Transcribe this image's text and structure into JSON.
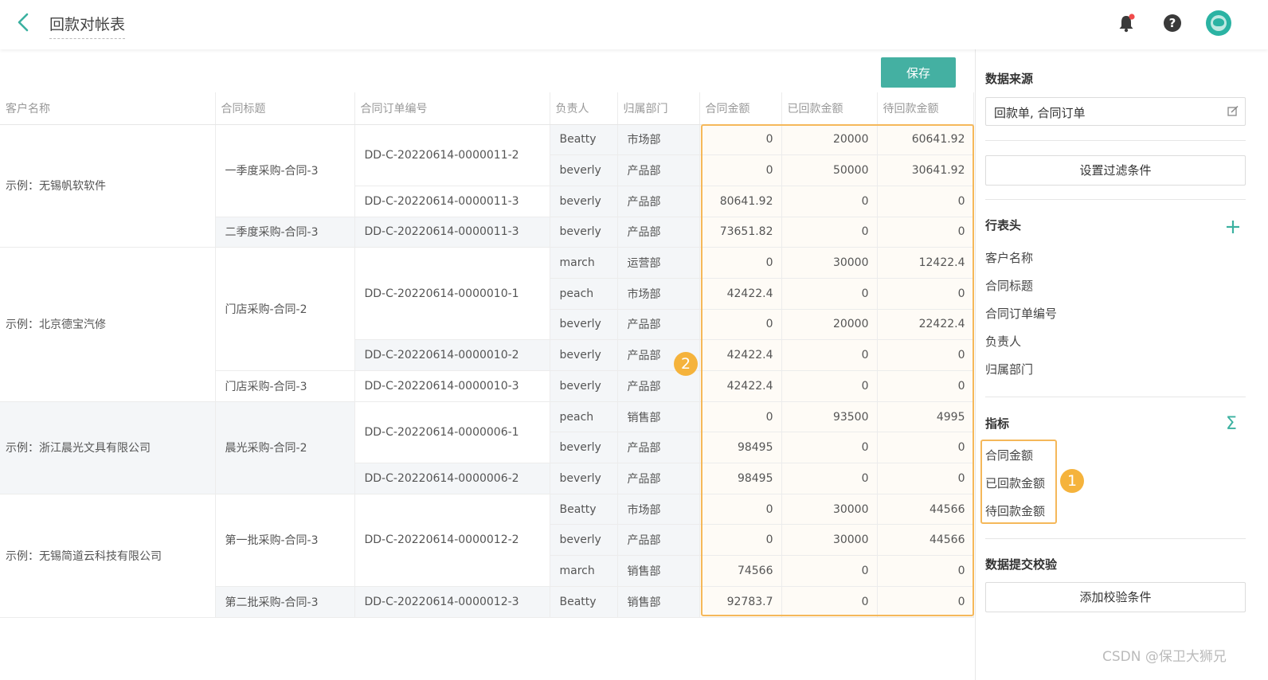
{
  "header": {
    "title": "回款对帐表"
  },
  "toolbar": {
    "save_label": "保存"
  },
  "table": {
    "columns": [
      "客户名称",
      "合同标题",
      "合同订单编号",
      "负责人",
      "归属部门",
      "合同金额",
      "已回款金额",
      "待回款金额"
    ],
    "customers": [
      "示例：无锡帆软软件",
      "示例：北京德宝汽修",
      "示例：浙江晨光文具有限公司",
      "示例：无锡简道云科技有限公司"
    ],
    "titles": [
      "一季度采购-合同-3",
      "二季度采购-合同-3",
      "门店采购-合同-2",
      "门店采购-合同-3",
      "晨光采购-合同-2",
      "第一批采购-合同-3",
      "第二批采购-合同-3"
    ],
    "orders": [
      "DD-C-20220614-0000011-2",
      "DD-C-20220614-0000011-3",
      "DD-C-20220614-0000011-3",
      "DD-C-20220614-0000010-1",
      "DD-C-20220614-0000010-2",
      "DD-C-20220614-0000010-3",
      "DD-C-20220614-0000006-1",
      "DD-C-20220614-0000006-2",
      "DD-C-20220614-0000012-2",
      "DD-C-20220614-0000012-3"
    ],
    "rows": [
      {
        "owner": "Beatty",
        "dept": "市场部",
        "contract": "0",
        "received": "20000",
        "pending": "60641.92"
      },
      {
        "owner": "beverly",
        "dept": "产品部",
        "contract": "0",
        "received": "50000",
        "pending": "30641.92"
      },
      {
        "owner": "beverly",
        "dept": "产品部",
        "contract": "80641.92",
        "received": "0",
        "pending": "0"
      },
      {
        "owner": "beverly",
        "dept": "产品部",
        "contract": "73651.82",
        "received": "0",
        "pending": "0"
      },
      {
        "owner": "march",
        "dept": "运营部",
        "contract": "0",
        "received": "30000",
        "pending": "12422.4"
      },
      {
        "owner": "peach",
        "dept": "市场部",
        "contract": "42422.4",
        "received": "0",
        "pending": "0"
      },
      {
        "owner": "beverly",
        "dept": "产品部",
        "contract": "0",
        "received": "20000",
        "pending": "22422.4"
      },
      {
        "owner": "beverly",
        "dept": "产品部",
        "contract": "42422.4",
        "received": "0",
        "pending": "0"
      },
      {
        "owner": "beverly",
        "dept": "产品部",
        "contract": "42422.4",
        "received": "0",
        "pending": "0"
      },
      {
        "owner": "peach",
        "dept": "销售部",
        "contract": "0",
        "received": "93500",
        "pending": "4995"
      },
      {
        "owner": "beverly",
        "dept": "产品部",
        "contract": "98495",
        "received": "0",
        "pending": "0"
      },
      {
        "owner": "beverly",
        "dept": "产品部",
        "contract": "98495",
        "received": "0",
        "pending": "0"
      },
      {
        "owner": "Beatty",
        "dept": "市场部",
        "contract": "0",
        "received": "30000",
        "pending": "44566"
      },
      {
        "owner": "beverly",
        "dept": "产品部",
        "contract": "0",
        "received": "30000",
        "pending": "44566"
      },
      {
        "owner": "march",
        "dept": "销售部",
        "contract": "74566",
        "received": "0",
        "pending": "0"
      },
      {
        "owner": "Beatty",
        "dept": "销售部",
        "contract": "92783.7",
        "received": "0",
        "pending": "0"
      }
    ]
  },
  "badges": {
    "one": "1",
    "two": "2"
  },
  "panel": {
    "data_source_title": "数据来源",
    "data_source_value": "回款单, 合同订单",
    "filter_button": "设置过滤条件",
    "row_header_title": "行表头",
    "row_header_fields": [
      "客户名称",
      "合同标题",
      "合同订单编号",
      "负责人",
      "归属部门"
    ],
    "metrics_title": "指标",
    "metrics_fields": [
      "合同金额",
      "已回款金额",
      "待回款金额"
    ],
    "validation_title": "数据提交校验",
    "validation_button": "添加校验条件",
    "sigma": "Σ"
  },
  "watermark": "CSDN @保卫大狮兄",
  "colors": {
    "accent": "#44b0a2",
    "highlight": "#f5b85a",
    "badge": "#f5b33c"
  },
  "icons": [
    "back-icon",
    "bell-icon",
    "help-icon",
    "avatar",
    "edit-icon",
    "plus-icon",
    "sigma-icon"
  ]
}
